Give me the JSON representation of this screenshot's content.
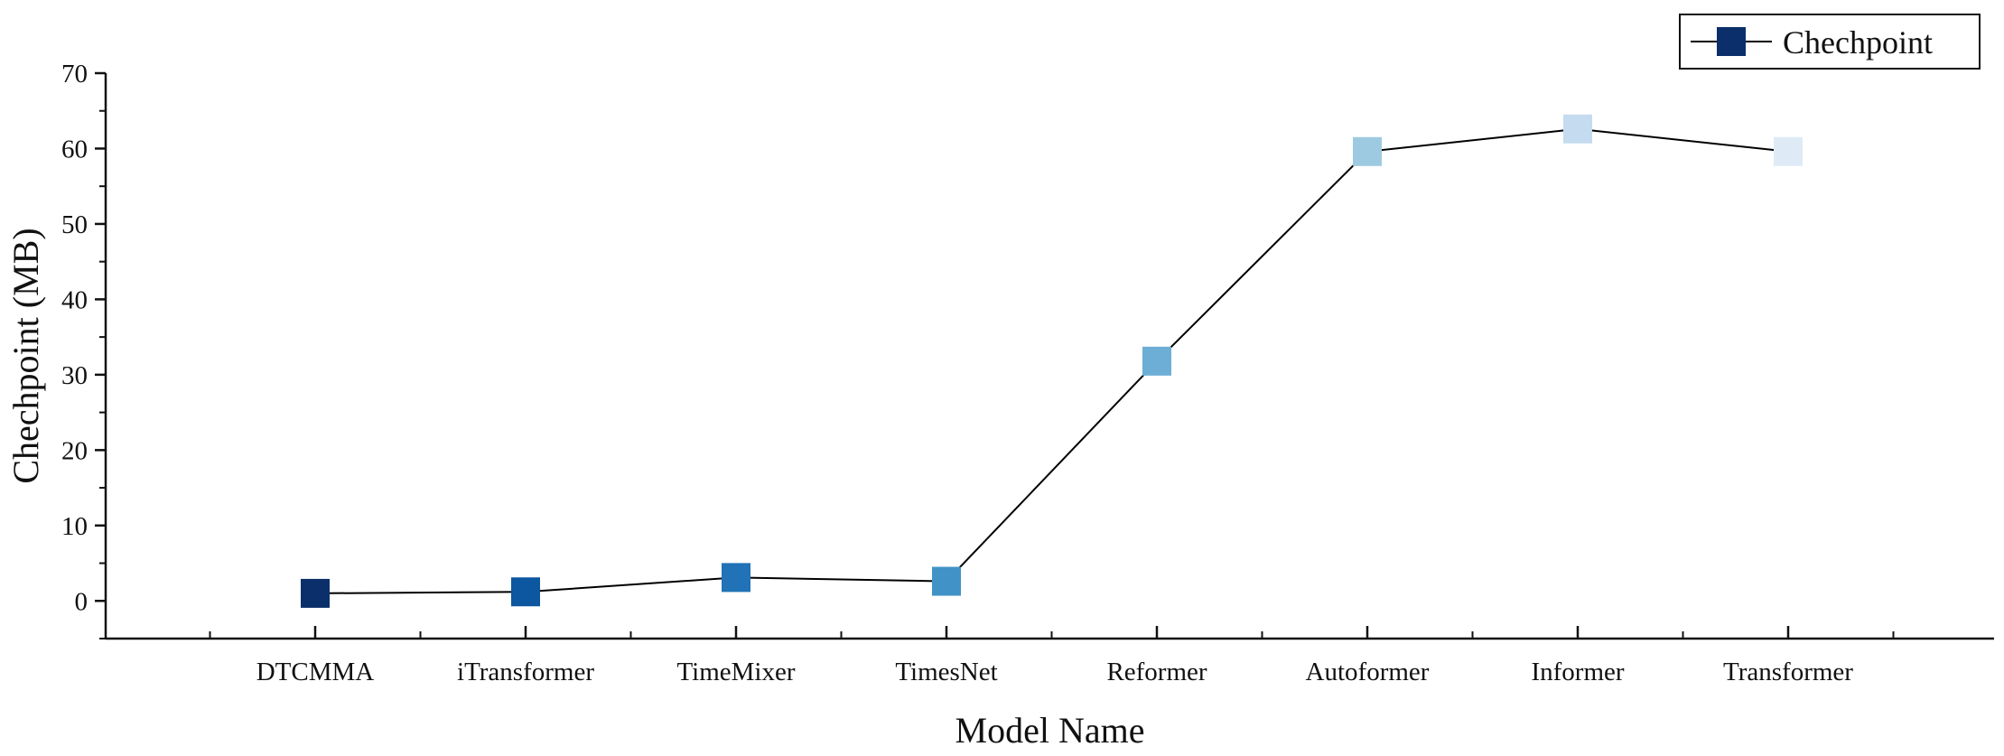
{
  "chart_data": {
    "type": "line",
    "xlabel": "Model Name",
    "ylabel": "Chechpoint (MB)",
    "categories": [
      "DTCMMA",
      "iTransformer",
      "TimeMixer",
      "TimesNet",
      "Reformer",
      "Autoformer",
      "Informer",
      "Transformer"
    ],
    "series": [
      {
        "name": "Chechpoint",
        "values": [
          1.0,
          1.2,
          3.1,
          2.6,
          31.8,
          59.6,
          62.6,
          59.6
        ],
        "line_color": "#000000",
        "legend_color": "#0b2f6b",
        "point_colors": [
          "#0b2f6b",
          "#0d56a0",
          "#2172b6",
          "#4192c6",
          "#6caed6",
          "#9ecae1",
          "#c5dbef",
          "#deebf7"
        ]
      }
    ],
    "ylim": [
      -5,
      70
    ],
    "yticks": [
      0,
      10,
      20,
      30,
      40,
      50,
      60,
      70
    ],
    "grid": false,
    "legend_position": "top-right"
  }
}
